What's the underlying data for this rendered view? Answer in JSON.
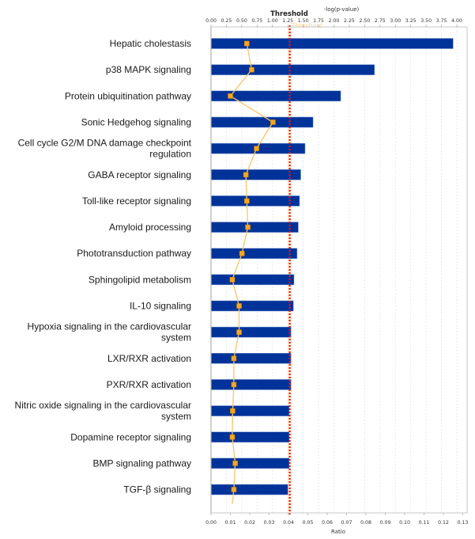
{
  "chart_data": {
    "type": "bar",
    "orientation": "horizontal",
    "categories": [
      "Hepatic cholestasis",
      "p38 MAPK signaling",
      "Protein ubiquitination pathway",
      "Sonic Hedgehog signaling",
      "Cell cycle G2/M DNA damage checkpoint regulation",
      "GABA receptor signaling",
      "Toll-like receptor signaling",
      "Amyloid processing",
      "Phototransduction pathway",
      "Sphingolipid metabolism",
      "IL-10 signaling",
      "Hypoxia signaling in the cardiovascular system",
      "LXR/RXR activation",
      "PXR/RXR activation",
      "Nitric oxide signaling in the cardiovascular system",
      "Dopamine receptor signaling",
      "BMP signaling pathway",
      "TGF-β signaling"
    ],
    "category_label_lines": [
      [
        "Hepatic cholestasis"
      ],
      [
        "p38 MAPK signaling"
      ],
      [
        "Protein ubiquitination pathway"
      ],
      [
        "Sonic Hedgehog signaling"
      ],
      [
        "Cell cycle G2/M DNA damage checkpoint",
        "regulation"
      ],
      [
        "GABA receptor signaling"
      ],
      [
        "Toll-like receptor signaling"
      ],
      [
        "Amyloid processing"
      ],
      [
        "Phototransduction pathway"
      ],
      [
        "Sphingolipid metabolism"
      ],
      [
        "IL-10 signaling"
      ],
      [
        "Hypoxia signaling in the cardiovascular",
        "system"
      ],
      [
        "LXR/RXR activation"
      ],
      [
        "PXR/RXR activation"
      ],
      [
        "Nitric oxide signaling in the cardiovascular",
        "system"
      ],
      [
        "Dopamine receptor signaling"
      ],
      [
        "BMP signaling pathway"
      ],
      [
        "TGF-β signaling"
      ]
    ],
    "series": [
      {
        "name": "-log(p-value)",
        "kind": "bar",
        "axis": "top",
        "color": "#003399",
        "values": [
          3.94,
          2.66,
          2.11,
          1.66,
          1.53,
          1.46,
          1.44,
          1.42,
          1.4,
          1.35,
          1.34,
          1.3,
          1.3,
          1.3,
          1.27,
          1.27,
          1.27,
          1.25
        ]
      },
      {
        "name": "Ratio",
        "kind": "line",
        "axis": "bottom",
        "color": "#f5a623",
        "line_color": "#f9c56a",
        "values": [
          0.0185,
          0.021,
          0.01,
          0.032,
          0.0235,
          0.018,
          0.0185,
          0.019,
          0.016,
          0.011,
          0.0145,
          0.0145,
          0.0118,
          0.0118,
          0.0112,
          0.011,
          0.0125,
          0.0118
        ]
      }
    ],
    "top_axis": {
      "label": "-log(p-value)",
      "range": [
        0,
        4.0
      ],
      "ticks": [
        "0.00",
        "0.25",
        "0.50",
        "0.75",
        "1.00",
        "1.25",
        "1.50",
        "1.75",
        "2.00",
        "2.25",
        "2.50",
        "2.75",
        "3.00",
        "3.25",
        "3.50",
        "3.75",
        "4.00"
      ]
    },
    "bottom_axis": {
      "label": "Ratio",
      "range": [
        0,
        0.13
      ],
      "ticks": [
        "0.00",
        "0.01",
        "0.02",
        "0.03",
        "0.04",
        "0.05",
        "0.06",
        "0.07",
        "0.08",
        "0.09",
        "0.10",
        "0.11",
        "0.12",
        "0.13"
      ]
    },
    "threshold": {
      "label": "Threshold",
      "value_neglogp": 1.3,
      "line_color": "#e8141c",
      "band_color": "#fde7c8"
    },
    "grid": true,
    "legend": "none"
  }
}
